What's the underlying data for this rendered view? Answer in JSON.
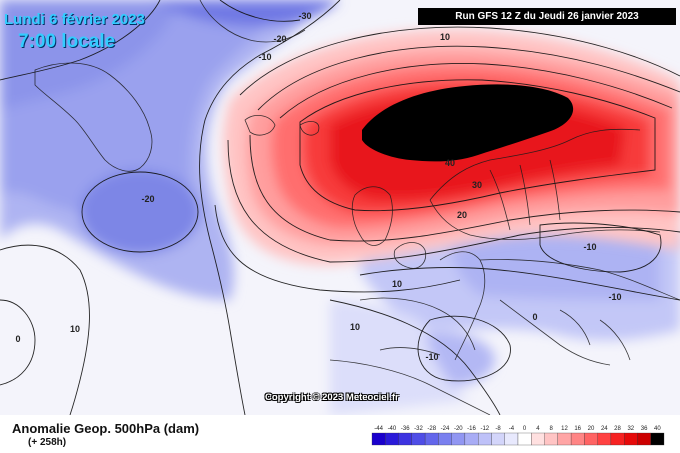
{
  "header": {
    "date_line": "Lundi 6 février 2023",
    "time_line": "7:00 locale",
    "run_info": "Run GFS 12 Z du Jeudi 26 janvier 2023"
  },
  "footer": {
    "title": "Anomalie Geop. 500hPa (dam)",
    "subtitle": "(+ 258h)",
    "copyright": "Copyright © 2023 Meteociel.fr"
  },
  "contour_labels": [
    "-30",
    "-20",
    "-10",
    "10",
    "10",
    "0",
    "-20",
    "-10",
    "10",
    "40",
    "30",
    "20",
    "-10",
    "0",
    "-10",
    "10"
  ],
  "legend": {
    "ticks": [
      "-44",
      "-40",
      "-36",
      "-32",
      "-28",
      "-24",
      "-20",
      "-16",
      "-12",
      "-8",
      "-4",
      "0",
      "4",
      "8",
      "12",
      "16",
      "20",
      "24",
      "28",
      "32",
      "36",
      "40"
    ],
    "colors": [
      "#1a00cc",
      "#2a1ad9",
      "#3d33e0",
      "#4f4de6",
      "#6366eb",
      "#7a80ef",
      "#9196f2",
      "#a8acf5",
      "#bec1f8",
      "#d3d5fa",
      "#e8e9fd",
      "#ffffff",
      "#ffe0e0",
      "#ffc4c4",
      "#ffa5a5",
      "#ff8585",
      "#ff6464",
      "#ff4242",
      "#f62222",
      "#e60a0a",
      "#cc0000",
      "#000000"
    ]
  },
  "colors": {
    "strong_positive": "#e8141a",
    "core": "#000000",
    "negative": "#8c94ea",
    "neutral": "#ffffff"
  }
}
